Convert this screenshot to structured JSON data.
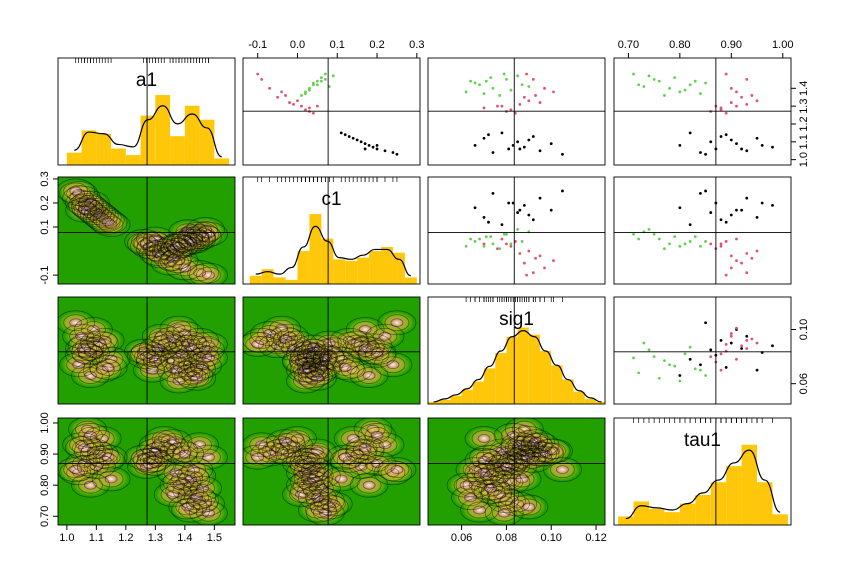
{
  "chart_data": {
    "type": "pairs",
    "hist_color": "#FFC70A",
    "density_color": "#000000",
    "contour_background": "#21A000",
    "variables": [
      {
        "name": "a1",
        "lim": [
          0.97,
          1.57
        ],
        "reference": 1.272,
        "xticks": [
          {
            "value": 1,
            "label": "1.0"
          },
          1.1,
          1.2,
          1.3,
          1.4,
          {
            "value": 1.5,
            "label": "1.5"
          }
        ],
        "yticks": [
          {
            "value": 1,
            "label": "1.0"
          },
          1.1,
          1.2,
          1.3,
          1.4
        ],
        "hist": {
          "bins": [
            1.0,
            1.05,
            1.1,
            1.15,
            1.2,
            1.25,
            1.3,
            1.35,
            1.4,
            1.45,
            1.5,
            1.55
          ],
          "counts": [
            15,
            42,
            38,
            20,
            12,
            60,
            85,
            35,
            72,
            55,
            8
          ],
          "density": [
            18,
            40,
            38,
            25,
            22,
            55,
            72,
            50,
            62,
            45,
            10
          ],
          "ylim": [
            0,
            130
          ]
        }
      },
      {
        "name": "c1",
        "lim": [
          -0.137,
          0.308
        ],
        "reference": 0.077,
        "xticks": [
          -0.1,
          {
            "value": 0,
            "label": "0.0"
          },
          0.1,
          0.2,
          0.3
        ],
        "yticks": [
          -0.1,
          0.1,
          0.2,
          0.3
        ],
        "hist": {
          "bins": [
            -0.12,
            -0.09,
            -0.06,
            -0.03,
            0.0,
            0.03,
            0.06,
            0.09,
            0.12,
            0.15,
            0.18,
            0.21,
            0.24,
            0.27,
            0.3
          ],
          "counts": [
            10,
            18,
            8,
            5,
            40,
            85,
            55,
            30,
            28,
            32,
            40,
            45,
            38,
            8
          ],
          "density": [
            12,
            15,
            12,
            20,
            45,
            70,
            52,
            32,
            30,
            35,
            42,
            42,
            30,
            10
          ],
          "ylim": [
            0,
            130
          ]
        }
      },
      {
        "name": "sig1",
        "lim": [
          0.045,
          0.124
        ],
        "reference": 0.0835,
        "xticks": [
          0.06,
          0.08,
          {
            "value": 0.1,
            "label": "0.10"
          },
          0.12
        ],
        "yticks": [
          0.06,
          {
            "value": 0.1,
            "label": "0.10"
          }
        ],
        "hist": {
          "bins": [
            0.045,
            0.05,
            0.055,
            0.06,
            0.065,
            0.07,
            0.075,
            0.08,
            0.085,
            0.09,
            0.095,
            0.1,
            0.105,
            0.11,
            0.115,
            0.12,
            0.125
          ],
          "counts": [
            2,
            4,
            8,
            14,
            22,
            35,
            50,
            66,
            75,
            68,
            52,
            38,
            24,
            12,
            5,
            2
          ],
          "density": [
            2,
            5,
            9,
            15,
            24,
            37,
            52,
            66,
            72,
            66,
            52,
            38,
            24,
            13,
            6,
            2
          ],
          "ylim": [
            0,
            105
          ]
        }
      },
      {
        "name": "tau1",
        "lim": [
          0.672,
          1.016
        ],
        "reference": 0.87,
        "xticks": [
          {
            "value": 0.7,
            "label": "0.70"
          },
          {
            "value": 0.8,
            "label": "0.80"
          },
          {
            "value": 0.9,
            "label": "0.90"
          },
          {
            "value": 1,
            "label": "1.00"
          }
        ],
        "yticks": [
          {
            "value": 0.7,
            "label": "0.70"
          },
          {
            "value": 0.8,
            "label": "0.80"
          },
          {
            "value": 0.9,
            "label": "0.90"
          },
          {
            "value": 1,
            "label": "1.00"
          }
        ],
        "hist": {
          "bins": [
            0.68,
            0.71,
            0.74,
            0.77,
            0.8,
            0.83,
            0.86,
            0.89,
            0.92,
            0.95,
            0.98,
            1.01
          ],
          "counts": [
            8,
            22,
            15,
            12,
            20,
            28,
            40,
            55,
            75,
            40,
            10
          ],
          "density": [
            6,
            18,
            16,
            14,
            20,
            30,
            42,
            58,
            70,
            42,
            12
          ],
          "ylim": [
            0,
            100
          ]
        }
      }
    ],
    "groups": [
      {
        "color": "#000000",
        "values": [
          [
            1.15,
            1.13,
            1.12,
            1.1,
            1.09,
            1.08,
            1.07,
            1.06,
            1.05,
            1.04,
            1.11,
            1.08,
            1.03,
            1.14,
            1.06
          ],
          [
            0.11,
            0.13,
            0.14,
            0.16,
            0.17,
            0.18,
            0.19,
            0.2,
            0.22,
            0.24,
            0.15,
            0.2,
            0.25,
            0.12,
            0.17
          ],
          [
            0.078,
            0.092,
            0.07,
            0.085,
            0.1,
            0.066,
            0.088,
            0.081,
            0.095,
            0.074,
            0.09,
            0.083,
            0.105,
            0.072,
            0.086
          ],
          [
            0.82,
            0.88,
            0.95,
            0.86,
            0.91,
            0.8,
            0.98,
            0.87,
            0.93,
            0.84,
            0.9,
            0.96,
            0.85,
            0.89,
            0.92
          ]
        ]
      },
      {
        "color": "#DF536B",
        "values": [
          [
            1.28,
            1.32,
            1.35,
            1.3,
            1.45,
            1.38,
            1.26,
            1.33,
            1.29,
            1.4,
            1.31,
            1.27,
            1.36,
            1.48,
            1.3
          ],
          [
            0.02,
            -0.02,
            -0.05,
            0.01,
            -0.09,
            -0.04,
            0.04,
            0.0,
            0.03,
            -0.07,
            -0.01,
            0.03,
            -0.03,
            -0.1,
            0.05
          ],
          [
            0.082,
            0.095,
            0.088,
            0.076,
            0.092,
            0.101,
            0.084,
            0.09,
            0.07,
            0.097,
            0.086,
            0.08,
            0.093,
            0.089,
            0.078
          ],
          [
            0.88,
            0.9,
            0.92,
            0.87,
            0.93,
            0.91,
            0.89,
            0.95,
            0.88,
            0.9,
            0.93,
            0.86,
            0.94,
            0.89,
            0.91
          ]
        ]
      },
      {
        "color": "#61D04F",
        "values": [
          [
            1.42,
            1.45,
            1.4,
            1.38,
            1.47,
            1.44,
            1.36,
            1.43,
            1.41,
            1.46,
            1.39,
            1.44,
            1.48,
            1.37,
            1.42
          ],
          [
            0.05,
            0.07,
            0.03,
            0.02,
            0.09,
            0.06,
            0.01,
            0.04,
            0.08,
            0.06,
            0.03,
            0.05,
            0.07,
            0.02,
            0.04
          ],
          [
            0.068,
            0.08,
            0.074,
            0.062,
            0.085,
            0.071,
            0.077,
            0.066,
            0.09,
            0.073,
            0.082,
            0.064,
            0.079,
            0.07,
            0.087
          ],
          [
            0.72,
            0.75,
            0.78,
            0.8,
            0.74,
            0.83,
            0.77,
            0.85,
            0.73,
            0.79,
            0.81,
            0.76,
            0.71,
            0.84,
            0.82
          ]
        ]
      }
    ]
  }
}
